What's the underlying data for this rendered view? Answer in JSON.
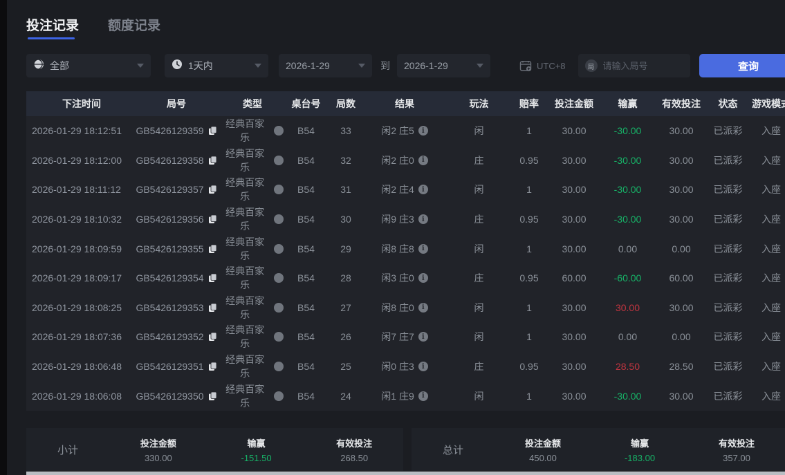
{
  "tabs": {
    "betting": "投注记录",
    "quota": "额度记录"
  },
  "filters": {
    "category": "全部",
    "time_range": "1天内",
    "date_from": "2026-1-29",
    "to_label": "到",
    "date_to": "2026-1-29",
    "timezone": "UTC+8",
    "round_placeholder": "请输入局号",
    "round_icon_char": "局",
    "query_button": "查询"
  },
  "table": {
    "columns": [
      "下注时间",
      "局号",
      "类型",
      "桌台号",
      "局数",
      "结果",
      "玩法",
      "赔率",
      "投注金额",
      "输赢",
      "有效投注",
      "状态",
      "游戏模式"
    ],
    "rows": [
      {
        "time": "2026-01-29 18:12:51",
        "game_no": "GB5426129359",
        "type": "经典百家乐",
        "table_no": "B54",
        "round": "33",
        "result": "闲2 庄5",
        "play": "闲",
        "odds": "1",
        "bet": "30.00",
        "winloss": "-30.00",
        "winloss_color": "green",
        "valid_bet": "30.00",
        "status": "已派彩",
        "mode": "入座"
      },
      {
        "time": "2026-01-29 18:12:00",
        "game_no": "GB5426129358",
        "type": "经典百家乐",
        "table_no": "B54",
        "round": "32",
        "result": "闲2 庄0",
        "play": "庄",
        "odds": "0.95",
        "bet": "30.00",
        "winloss": "-30.00",
        "winloss_color": "green",
        "valid_bet": "30.00",
        "status": "已派彩",
        "mode": "入座"
      },
      {
        "time": "2026-01-29 18:11:12",
        "game_no": "GB5426129357",
        "type": "经典百家乐",
        "table_no": "B54",
        "round": "31",
        "result": "闲2 庄4",
        "play": "闲",
        "odds": "1",
        "bet": "30.00",
        "winloss": "-30.00",
        "winloss_color": "green",
        "valid_bet": "30.00",
        "status": "已派彩",
        "mode": "入座"
      },
      {
        "time": "2026-01-29 18:10:32",
        "game_no": "GB5426129356",
        "type": "经典百家乐",
        "table_no": "B54",
        "round": "30",
        "result": "闲9 庄3",
        "play": "庄",
        "odds": "0.95",
        "bet": "30.00",
        "winloss": "-30.00",
        "winloss_color": "green",
        "valid_bet": "30.00",
        "status": "已派彩",
        "mode": "入座"
      },
      {
        "time": "2026-01-29 18:09:59",
        "game_no": "GB5426129355",
        "type": "经典百家乐",
        "table_no": "B54",
        "round": "29",
        "result": "闲8 庄8",
        "play": "闲",
        "odds": "1",
        "bet": "30.00",
        "winloss": "0.00",
        "winloss_color": "neutral",
        "valid_bet": "0.00",
        "status": "已派彩",
        "mode": "入座"
      },
      {
        "time": "2026-01-29 18:09:17",
        "game_no": "GB5426129354",
        "type": "经典百家乐",
        "table_no": "B54",
        "round": "28",
        "result": "闲3 庄0",
        "play": "庄",
        "odds": "0.95",
        "bet": "60.00",
        "winloss": "-60.00",
        "winloss_color": "green",
        "valid_bet": "60.00",
        "status": "已派彩",
        "mode": "入座"
      },
      {
        "time": "2026-01-29 18:08:25",
        "game_no": "GB5426129353",
        "type": "经典百家乐",
        "table_no": "B54",
        "round": "27",
        "result": "闲8 庄0",
        "play": "闲",
        "odds": "1",
        "bet": "30.00",
        "winloss": "30.00",
        "winloss_color": "red",
        "valid_bet": "30.00",
        "status": "已派彩",
        "mode": "入座"
      },
      {
        "time": "2026-01-29 18:07:36",
        "game_no": "GB5426129352",
        "type": "经典百家乐",
        "table_no": "B54",
        "round": "26",
        "result": "闲7 庄7",
        "play": "闲",
        "odds": "1",
        "bet": "30.00",
        "winloss": "0.00",
        "winloss_color": "neutral",
        "valid_bet": "0.00",
        "status": "已派彩",
        "mode": "入座"
      },
      {
        "time": "2026-01-29 18:06:48",
        "game_no": "GB5426129351",
        "type": "经典百家乐",
        "table_no": "B54",
        "round": "25",
        "result": "闲0 庄3",
        "play": "庄",
        "odds": "0.95",
        "bet": "30.00",
        "winloss": "28.50",
        "winloss_color": "red",
        "valid_bet": "28.50",
        "status": "已派彩",
        "mode": "入座"
      },
      {
        "time": "2026-01-29 18:06:08",
        "game_no": "GB5426129350",
        "type": "经典百家乐",
        "table_no": "B54",
        "round": "24",
        "result": "闲1 庄9",
        "play": "闲",
        "odds": "1",
        "bet": "30.00",
        "winloss": "-30.00",
        "winloss_color": "green",
        "valid_bet": "30.00",
        "status": "已派彩",
        "mode": "入座"
      }
    ]
  },
  "summary": {
    "subtotal": {
      "label": "小计",
      "bet_label": "投注金额",
      "bet": "330.00",
      "winloss_label": "输赢",
      "winloss": "-151.50",
      "valid_label": "有效投注",
      "valid": "268.50"
    },
    "total": {
      "label": "总计",
      "bet_label": "投注金额",
      "bet": "450.00",
      "winloss_label": "输赢",
      "winloss": "-183.00",
      "valid_label": "有效投注",
      "valid": "357.00"
    }
  },
  "colors": {
    "accent_blue": "#4a6be0",
    "win_red": "#c23540",
    "loss_green": "#17b267"
  }
}
